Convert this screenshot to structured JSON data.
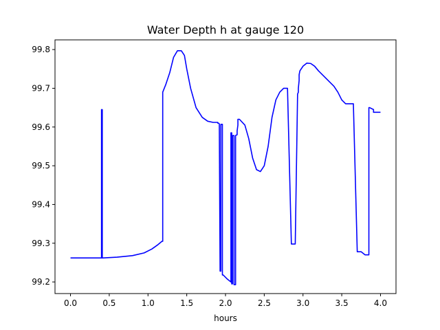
{
  "chart_data": {
    "type": "line",
    "title": "Water Depth h at gauge 120",
    "xlabel": "hours",
    "ylabel": "",
    "xlim": [
      -0.2,
      4.2
    ],
    "ylim": [
      99.17,
      99.825
    ],
    "xticks": [
      0.0,
      0.5,
      1.0,
      1.5,
      2.0,
      2.5,
      3.0,
      3.5,
      4.0
    ],
    "xtick_labels": [
      "0.0",
      "0.5",
      "1.0",
      "1.5",
      "2.0",
      "2.5",
      "3.0",
      "3.5",
      "4.0"
    ],
    "yticks": [
      99.2,
      99.3,
      99.4,
      99.5,
      99.6,
      99.7,
      99.8
    ],
    "ytick_labels": [
      "99.2",
      "99.3",
      "99.4",
      "99.5",
      "99.6",
      "99.7",
      "99.8"
    ],
    "grid": false,
    "series": [
      {
        "color": "#0000ff",
        "x": [
          0.0,
          0.4,
          0.4,
          0.41,
          0.41,
          0.42,
          0.42,
          0.6,
          0.8,
          0.95,
          1.05,
          1.12,
          1.18,
          1.19,
          1.19,
          1.23,
          1.28,
          1.33,
          1.38,
          1.43,
          1.47,
          1.5,
          1.55,
          1.62,
          1.7,
          1.77,
          1.84,
          1.9,
          1.9,
          1.91,
          1.92,
          1.93,
          1.93,
          1.94,
          1.94,
          1.96,
          1.96,
          1.97,
          1.97,
          2.02,
          2.07,
          2.07,
          2.08,
          2.08,
          2.09,
          2.09,
          2.11,
          2.11,
          2.13,
          2.13,
          2.15,
          2.15,
          2.16,
          2.16,
          2.18,
          2.25,
          2.3,
          2.35,
          2.4,
          2.45,
          2.5,
          2.55,
          2.6,
          2.65,
          2.7,
          2.75,
          2.8,
          2.85,
          2.9,
          2.93,
          2.94,
          2.94,
          2.95,
          2.95,
          2.96,
          3.0,
          3.05,
          3.1,
          3.15,
          3.2,
          3.25,
          3.3,
          3.35,
          3.4,
          3.45,
          3.5,
          3.55,
          3.6,
          3.65,
          3.7,
          3.75,
          3.8,
          3.85,
          3.85,
          3.86,
          3.91,
          3.91,
          3.96,
          4.0
        ],
        "y": [
          99.262,
          99.262,
          99.645,
          99.645,
          99.262,
          99.262,
          99.262,
          99.264,
          99.268,
          99.275,
          99.285,
          99.295,
          99.305,
          99.305,
          99.69,
          99.71,
          99.74,
          99.78,
          99.797,
          99.797,
          99.785,
          99.75,
          99.7,
          99.65,
          99.625,
          99.615,
          99.612,
          99.612,
          99.61,
          99.61,
          99.608,
          99.228,
          99.228,
          99.228,
          99.607,
          99.607,
          99.218,
          99.218,
          99.218,
          99.208,
          99.2,
          99.585,
          99.585,
          99.195,
          99.195,
          99.578,
          99.578,
          99.193,
          99.193,
          99.578,
          99.58,
          99.59,
          99.605,
          99.62,
          99.62,
          99.605,
          99.57,
          99.52,
          99.49,
          99.485,
          99.5,
          99.55,
          99.625,
          99.67,
          99.69,
          99.7,
          99.7,
          99.298,
          99.298,
          99.685,
          99.69,
          99.7,
          99.72,
          99.735,
          99.745,
          99.757,
          99.765,
          99.764,
          99.757,
          99.745,
          99.735,
          99.725,
          99.715,
          99.705,
          99.69,
          99.67,
          99.66,
          99.66,
          99.66,
          99.278,
          99.278,
          99.27,
          99.27,
          99.65,
          99.65,
          99.645,
          99.638,
          99.638,
          99.638
        ]
      }
    ]
  }
}
